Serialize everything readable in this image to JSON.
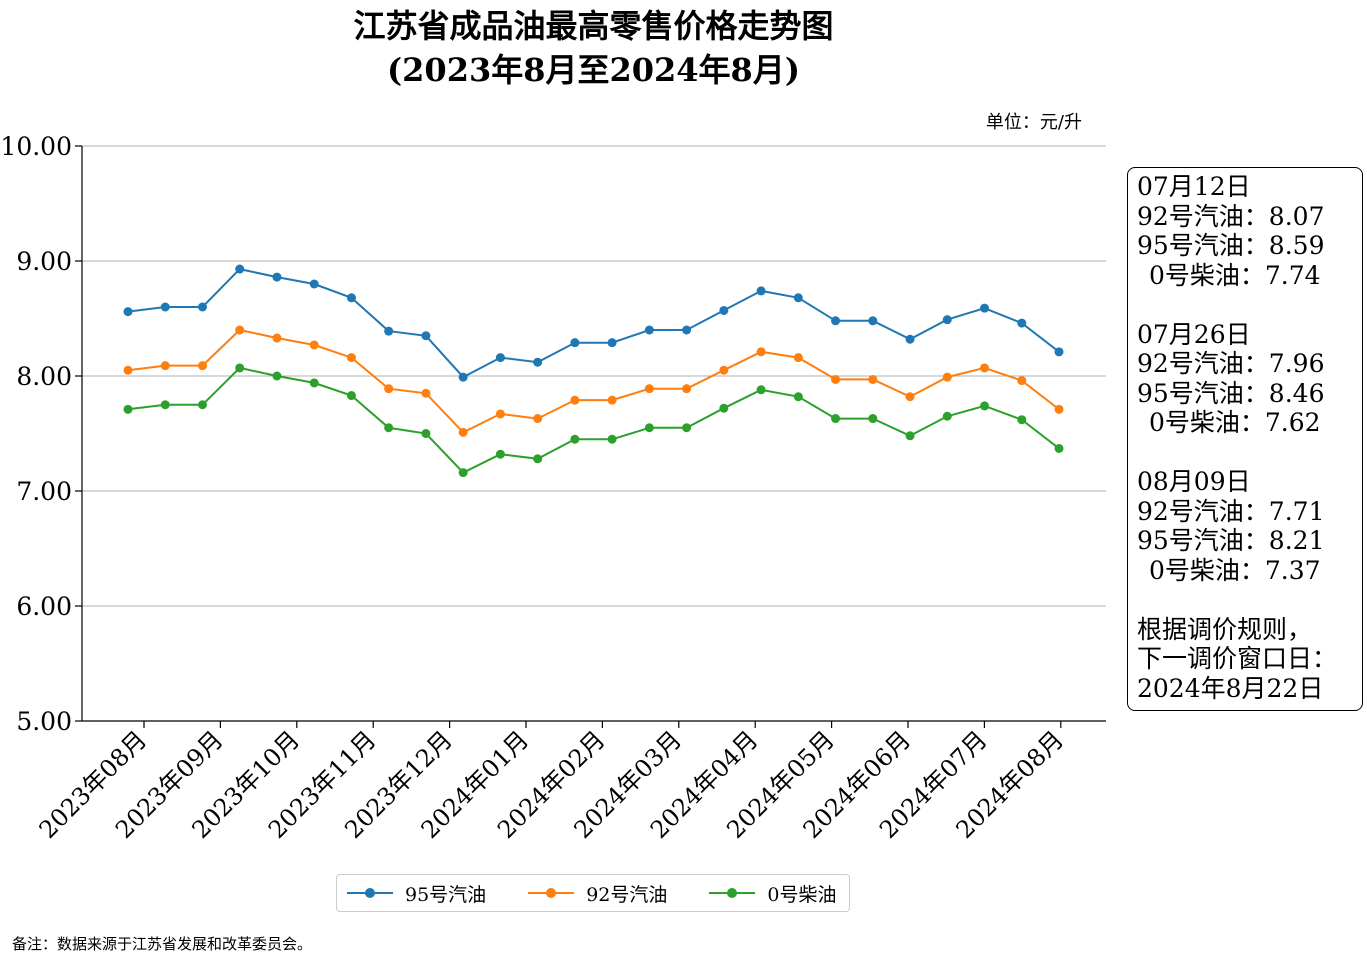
{
  "title": {
    "line1": "江苏省成品油最高零售价格走势图",
    "line2": "(2023年8月至2024年8月)"
  },
  "unit_label": "单位：元/升",
  "note": "备注：数据来源于江苏省发展和改革委员会。",
  "colors": {
    "p95": "#1f77b4",
    "p92": "#ff7f0e",
    "diesel": "#2ca02c",
    "grid": "#b0b0b0"
  },
  "chart_data": {
    "type": "line",
    "x_labels": [
      "2023年08月",
      "2023年09月",
      "2023年10月",
      "2023年11月",
      "2023年12月",
      "2024年01月",
      "2024年02月",
      "2024年03月",
      "2024年04月",
      "2024年05月",
      "2024年06月",
      "2024年07月",
      "2024年08月"
    ],
    "y_ticks": [
      "5.00",
      "6.00",
      "7.00",
      "8.00",
      "9.00",
      "10.00"
    ],
    "ylim": [
      5,
      10
    ],
    "grid": "horizontal",
    "legend_position": "bottom-center",
    "series": [
      {
        "name": "95号汽油",
        "color": "#1f77b4",
        "values": [
          8.56,
          8.6,
          8.6,
          8.93,
          8.86,
          8.8,
          8.68,
          8.39,
          8.35,
          7.99,
          8.16,
          8.12,
          8.29,
          8.29,
          8.4,
          8.4,
          8.57,
          8.74,
          8.68,
          8.48,
          8.48,
          8.32,
          8.49,
          8.59,
          8.46,
          8.21
        ]
      },
      {
        "name": "92号汽油",
        "color": "#ff7f0e",
        "values": [
          8.05,
          8.09,
          8.09,
          8.4,
          8.33,
          8.27,
          8.16,
          7.89,
          7.85,
          7.51,
          7.67,
          7.63,
          7.79,
          7.79,
          7.89,
          7.89,
          8.05,
          8.21,
          8.16,
          7.97,
          7.97,
          7.82,
          7.99,
          8.07,
          7.96,
          7.71
        ]
      },
      {
        "name": "0号柴油",
        "color": "#2ca02c",
        "values": [
          7.71,
          7.75,
          7.75,
          8.07,
          8.0,
          7.94,
          7.83,
          7.55,
          7.5,
          7.16,
          7.32,
          7.28,
          7.45,
          7.45,
          7.55,
          7.55,
          7.72,
          7.88,
          7.82,
          7.63,
          7.63,
          7.48,
          7.65,
          7.74,
          7.62,
          7.37
        ]
      }
    ]
  },
  "infobox": {
    "blocks": [
      {
        "date": "07月12日",
        "p92": "92号汽油：8.07",
        "p95": "95号汽油：8.59",
        "diesel": "0号柴油：7.74"
      },
      {
        "date": "07月26日",
        "p92": "92号汽油：7.96",
        "p95": "95号汽油：8.46",
        "diesel": "0号柴油：7.62"
      },
      {
        "date": "08月09日",
        "p92": "92号汽油：7.71",
        "p95": "95号汽油：8.21",
        "diesel": "0号柴油：7.37"
      }
    ],
    "footer1": "根据调价规则，",
    "footer2": "下一调价窗口日：",
    "footer3": "2024年8月22日"
  },
  "legend": {
    "p95": "95号汽油",
    "p92": "92号汽油",
    "diesel": "0号柴油"
  }
}
